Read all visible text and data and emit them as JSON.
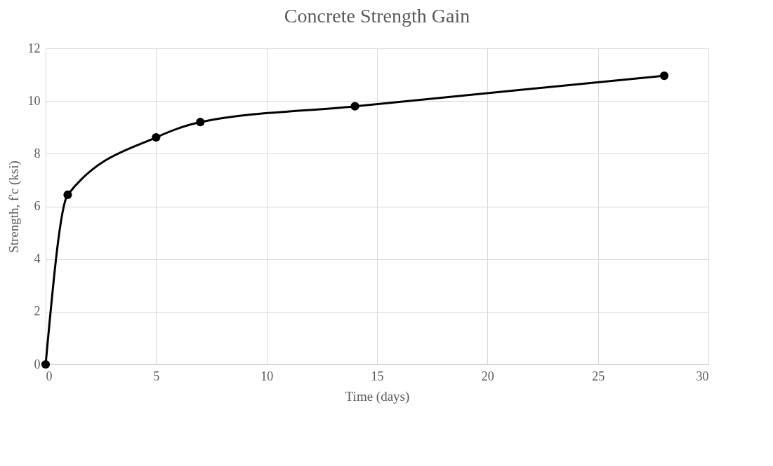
{
  "chart_data": {
    "type": "line",
    "title": "Concrete Strength Gain",
    "xlabel": "Time (days)",
    "ylabel": "Strength, f'c (ksi)",
    "x": [
      0,
      1,
      5,
      7,
      14,
      28
    ],
    "series": [
      {
        "color": "#000000",
        "values": [
          0,
          6.44,
          8.62,
          9.2,
          9.8,
          10.96
        ]
      }
    ],
    "xlim": [
      0,
      30
    ],
    "xticks": [
      0,
      5,
      10,
      15,
      20,
      25,
      30
    ],
    "ylim": [
      0,
      12
    ],
    "yticks": [
      0,
      2,
      4,
      6,
      8,
      10,
      12
    ],
    "grid": true,
    "marker": "circle",
    "line_style": "solid"
  }
}
